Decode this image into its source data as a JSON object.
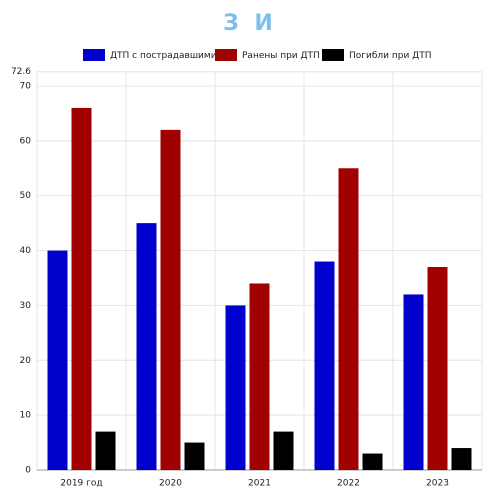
{
  "chart_data": {
    "type": "bar",
    "title": "З И",
    "categories": [
      "2019 год",
      "2020",
      "2021",
      "2022",
      "2023"
    ],
    "series": [
      {
        "name": "ДТП с пострадавшими",
        "color": "#0000cc",
        "values": [
          40,
          45,
          30,
          38,
          32
        ]
      },
      {
        "name": "Ранены при ДТП",
        "color": "#a00000",
        "values": [
          66,
          62,
          34,
          55,
          37
        ]
      },
      {
        "name": "Погибли при ДТП",
        "color": "#000000",
        "values": [
          7,
          5,
          7,
          3,
          4
        ]
      }
    ],
    "ylim": [
      0,
      72.6
    ],
    "yticks": [
      0,
      10,
      20,
      30,
      40,
      50,
      60,
      70,
      72.6
    ],
    "grid": true,
    "legend": "top"
  }
}
